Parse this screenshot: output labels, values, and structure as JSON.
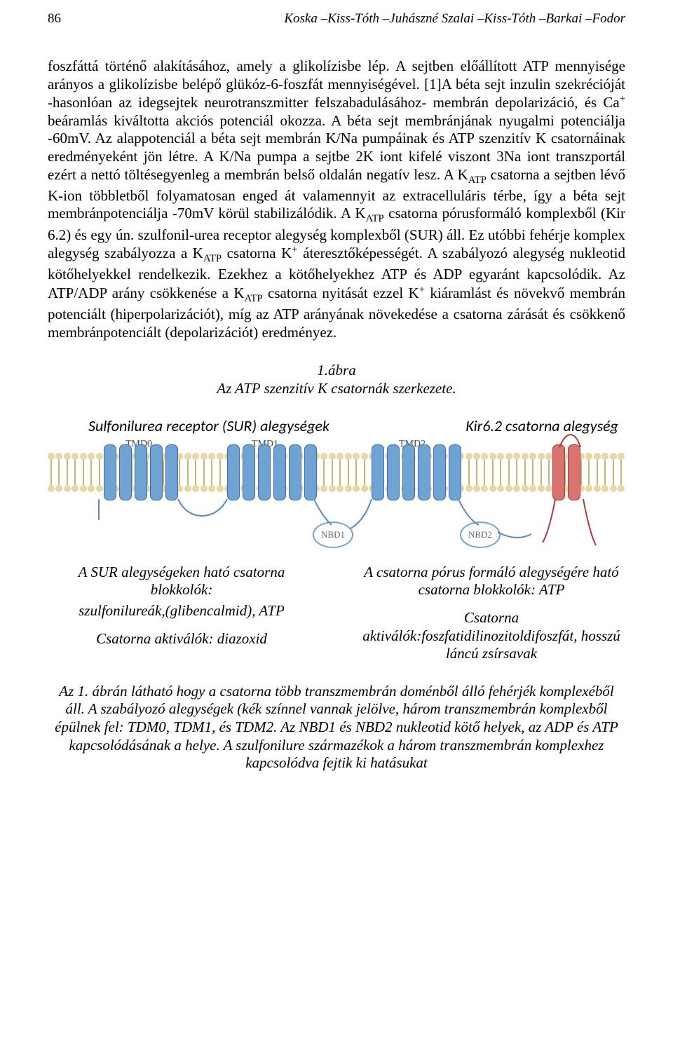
{
  "page_number": "86",
  "running_header": "Koska –Kiss-Tóth –Juhászné Szalai –Kiss-Tóth –Barkai –Fodor",
  "body_paragraph": "foszfáttá történő alakításához, amely a glikolízisbe lép. A sejtben előállított ATP mennyisége arányos a glikolízisbe belépő glükóz-6-foszfát mennyiségével. [1]A béta sejt inzulin szekrécióját -hasonlóan az idegsejtek neurotranszmitter felszabadulásához- membrán depolarizáció, és Ca⁺ beáramlás kiváltotta akciós potenciál okozza. A béta sejt membránjának nyugalmi potenciálja -60mV. Az alappotenciál a béta sejt membrán K/Na pumpáinak és ATP szenzitív K csatornáinak eredményeként jön létre. A K/Na pumpa a sejtbe 2K iont kifelé viszont 3Na iont transzportál ezért a nettó töltésegyenleg a membrán belső oldalán negatív lesz. A KATP csatorna a sejtben lévő K-ion többletből folyamatosan enged át valamennyit az extracelluláris térbe, így a béta sejt membránpotenciálja -70mV körül stabilizálódik. A KATP csatorna pórusformáló komplexből (Kir 6.2) és egy ún. szulfonil-urea receptor alegység komplexből (SUR) áll. Ez utóbbi fehérje komplex alegység szabályozza a KATP csatorna K⁺ áteresztőképességét. A szabályozó alegység nukleotid kötőhelyekkel rendelkezik. Ezekhez a kötőhelyekhez ATP és ADP egyaránt kapcsolódik. Az ATP/ADP arány csökkenése a KATP csatorna nyitását ezzel K⁺ kiáramlást és növekvő membrán potenciált (hiperpolarizációt), míg az ATP arányának növekedése a csatorna zárását és csökkenő membránpotenciált (depolarizációt) eredményez.",
  "figure_label": "1.ábra",
  "figure_title": "Az ATP szenzitív K csatornák szerkezete.",
  "diagram": {
    "label_left": "Sulfonilurea receptor (SUR) alegységek",
    "label_right": "Kir6.2 csatorna alegység",
    "tm_labels": [
      "TMD0",
      "TMD1",
      "TMD2"
    ],
    "tm_counts": [
      5,
      6,
      6
    ],
    "nbd_labels": [
      "NBD1",
      "NBD2"
    ],
    "colors": {
      "membrane_head": "#e7d7a4",
      "membrane_tail": "#c9b56f",
      "sur_cylinder_fill": "#6fa3d4",
      "sur_cylinder_border": "#3f6ea6",
      "kir_cylinder_fill": "#d9736f",
      "kir_cylinder_border": "#a73c3c",
      "nbd_border": "#6fa3d4",
      "nbd_text": "#6a6a6a",
      "line": "#5e88b8"
    }
  },
  "annotations": {
    "left": {
      "line1": "A SUR alegységeken ható csatorna blokkolók:",
      "line2": "szulfonilureák,(glibencalmid), ATP",
      "line3": "Csatorna aktiválók: diazoxid"
    },
    "right": {
      "line1": "A csatorna pórus formáló alegységére ható csatorna blokkolók: ATP",
      "line2": "Csatorna aktiválók:foszfatidilinozitoldifoszfát, hosszú láncú zsírsavak"
    }
  },
  "bottom_caption": "Az 1. ábrán látható hogy a csatorna több transzmembrán doménből álló fehérjék komplexéből áll. A szabályozó alegységek (kék színnel vannak jelölve, három transzmembrán komplexből épülnek fel: TDM0, TDM1, és TDM2. Az NBD1 és NBD2 nukleotid kötő helyek, az ADP és ATP kapcsolódásának a helye. A szulfonilure származékok a három transzmembrán komplexhez kapcsolódva fejtik ki hatásukat"
}
